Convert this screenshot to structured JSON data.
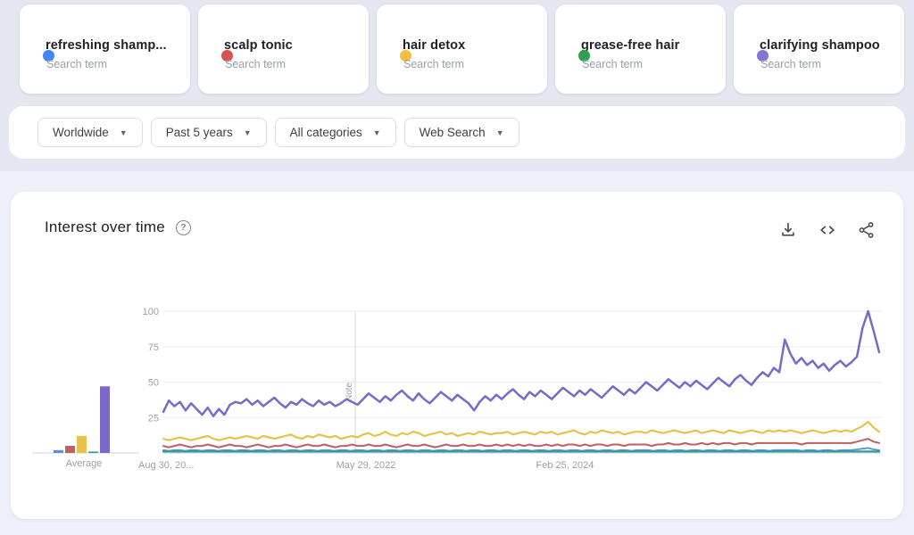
{
  "terms": [
    {
      "label": "refreshing shamp...",
      "sub": "Search term",
      "color": "#4285f4",
      "line": "#5b8fd4"
    },
    {
      "label": "scalp tonic",
      "sub": "Search term",
      "color": "#d9534e",
      "line": "#c0605c"
    },
    {
      "label": "hair detox",
      "sub": "Search term",
      "color": "#f2bf42",
      "line": "#e7c14c"
    },
    {
      "label": "grease-free hair",
      "sub": "Search term",
      "color": "#2ea052",
      "line": "#2f9e96"
    },
    {
      "label": "clarifying shampoo",
      "sub": "Search term",
      "color": "#8673d2",
      "line": "#7b68c9"
    }
  ],
  "filters": [
    {
      "label": "Worldwide"
    },
    {
      "label": "Past 5 years"
    },
    {
      "label": "All categories"
    },
    {
      "label": "Web Search"
    }
  ],
  "chart_header": {
    "title": "Interest over time",
    "help": "?"
  },
  "chart_data": {
    "type": "line",
    "title": "Interest over time",
    "ylim": [
      0,
      100
    ],
    "yticks": [
      25,
      50,
      75,
      100
    ],
    "xticks": [
      {
        "label": "Aug 30, 20...",
        "pos": 0,
        "anchor": "start"
      },
      {
        "label": "May 29, 2022",
        "pos": 0.283,
        "anchor": "middle"
      },
      {
        "label": "Feb 25, 2024",
        "pos": 0.561,
        "anchor": "middle"
      }
    ],
    "note_label": "Note",
    "note_marker_pos": 0.268,
    "average_label": "Average",
    "averages": [
      2,
      5,
      12,
      1,
      47
    ],
    "legend_position": "top-cards",
    "grid": true,
    "series": [
      {
        "name": "refreshing shampoo",
        "line": "#5b8fd4",
        "width": 1.8,
        "values": [
          2,
          1.5,
          2,
          2,
          1.5,
          2,
          2,
          1.5,
          2,
          2,
          1.5,
          2,
          2,
          1.5,
          2,
          2,
          1.5,
          2,
          2,
          1.5,
          2,
          2,
          1.5,
          2,
          2,
          1.5,
          2,
          2,
          1.5,
          2,
          2,
          1.5,
          2,
          2,
          1.5,
          2,
          2,
          1.5,
          2,
          2,
          1.5,
          2,
          2,
          1.5,
          2,
          2,
          1.5,
          2,
          2,
          1.5,
          2,
          2,
          1.5,
          2,
          2,
          1.5,
          2,
          2,
          1.5,
          2,
          2,
          1.5,
          2,
          2,
          1.5,
          2,
          2,
          1.5,
          2,
          2,
          1.5,
          2,
          2,
          1.5,
          2,
          2,
          1.5,
          2,
          2,
          1.5,
          2,
          2,
          1.5,
          2,
          2,
          1.5,
          2,
          2,
          2,
          1.5,
          2,
          2,
          1.5,
          2,
          2,
          1.5,
          2,
          2,
          1.5,
          2,
          2,
          1.5,
          2,
          2,
          1.5,
          2,
          2,
          1.5,
          2,
          2,
          1.5,
          2,
          2,
          2,
          2,
          2,
          1.5,
          2,
          2,
          1.5,
          2,
          2,
          1.5,
          2,
          2,
          2,
          2.5,
          3,
          3.5,
          2.5,
          2
        ]
      },
      {
        "name": "scalp tonic",
        "line": "#c0605c",
        "width": 2,
        "values": [
          5,
          4,
          5,
          6,
          5,
          4,
          5,
          5,
          6,
          5,
          4,
          5,
          6,
          5,
          5,
          4,
          5,
          6,
          5,
          4,
          5,
          5,
          6,
          5,
          4,
          5,
          6,
          5,
          5,
          6,
          5,
          4,
          5,
          5,
          6,
          5,
          5,
          6,
          5,
          5,
          6,
          5,
          4,
          5,
          6,
          5,
          5,
          6,
          5,
          4,
          5,
          6,
          5,
          5,
          6,
          5,
          5,
          6,
          5,
          5,
          6,
          5,
          6,
          5,
          6,
          5,
          6,
          5,
          5,
          6,
          5,
          6,
          5,
          6,
          6,
          5,
          6,
          5,
          6,
          6,
          5,
          6,
          6,
          5,
          6,
          6,
          6,
          6,
          5,
          6,
          6,
          7,
          6,
          6,
          7,
          6,
          6,
          7,
          6,
          7,
          6,
          7,
          7,
          6,
          7,
          7,
          6,
          7,
          7,
          7,
          7,
          7,
          7,
          7,
          7,
          6,
          7,
          7,
          7,
          7,
          7,
          7,
          7,
          7,
          7,
          8,
          9,
          10,
          8,
          7
        ]
      },
      {
        "name": "hair detox",
        "line": "#e7c14c",
        "width": 2.2,
        "values": [
          10,
          9,
          10,
          11,
          10,
          9,
          10,
          11,
          12,
          10,
          9,
          10,
          11,
          10,
          11,
          12,
          11,
          10,
          12,
          11,
          10,
          11,
          12,
          13,
          11,
          10,
          12,
          11,
          13,
          12,
          11,
          12,
          10,
          11,
          12,
          11,
          13,
          14,
          12,
          13,
          15,
          13,
          12,
          14,
          13,
          15,
          14,
          12,
          13,
          14,
          15,
          13,
          14,
          12,
          13,
          14,
          13,
          15,
          14,
          13,
          14,
          14,
          15,
          13,
          14,
          15,
          14,
          13,
          15,
          14,
          15,
          13,
          14,
          15,
          16,
          14,
          13,
          15,
          14,
          16,
          15,
          14,
          15,
          13,
          14,
          15,
          15,
          14,
          16,
          15,
          14,
          15,
          16,
          15,
          14,
          15,
          16,
          14,
          15,
          16,
          15,
          14,
          16,
          15,
          14,
          15,
          16,
          15,
          14,
          16,
          15,
          16,
          15,
          16,
          15,
          14,
          15,
          16,
          15,
          14,
          15,
          16,
          15,
          16,
          15,
          17,
          19,
          22,
          18,
          15
        ]
      },
      {
        "name": "grease-free hair",
        "line": "#2f9e96",
        "width": 2.2,
        "values": [
          1,
          1,
          1,
          1,
          1,
          1,
          1,
          1,
          1,
          1,
          1,
          1,
          1,
          1,
          1,
          1,
          1,
          1,
          1,
          1,
          1,
          1,
          1,
          1,
          1,
          1,
          1,
          1,
          1,
          1,
          1,
          1,
          1,
          1,
          1,
          1,
          1,
          1,
          1,
          1,
          1,
          1,
          1,
          1,
          1,
          1,
          1,
          1,
          1,
          1,
          1,
          1,
          1,
          1,
          1,
          1,
          1,
          1,
          1,
          1,
          1,
          1,
          1,
          1,
          1,
          1,
          1,
          1,
          1,
          1,
          1,
          1,
          1,
          1,
          1,
          1,
          1,
          1,
          1,
          1,
          1,
          1,
          1,
          1,
          1,
          1,
          1,
          1,
          1,
          1,
          1,
          1,
          1,
          1,
          1,
          1,
          1,
          1,
          1,
          1,
          1,
          1,
          1,
          1,
          1,
          1,
          1,
          1,
          1,
          1,
          1,
          1,
          1,
          1,
          1,
          1,
          1,
          1,
          1,
          1,
          1,
          1,
          1,
          1,
          1,
          1,
          1,
          1,
          1,
          1
        ]
      },
      {
        "name": "clarifying shampoo",
        "line": "#7b68c9",
        "width": 2.5,
        "values": [
          29,
          37,
          33,
          36,
          30,
          35,
          31,
          27,
          32,
          26,
          31,
          27,
          34,
          36,
          35,
          38,
          34,
          37,
          33,
          36,
          39,
          35,
          32,
          36,
          34,
          38,
          35,
          33,
          37,
          34,
          36,
          33,
          35,
          38,
          36,
          34,
          38,
          42,
          39,
          36,
          40,
          37,
          41,
          44,
          40,
          37,
          42,
          38,
          35,
          39,
          43,
          40,
          37,
          41,
          38,
          35,
          30,
          36,
          40,
          37,
          41,
          38,
          42,
          45,
          41,
          38,
          43,
          40,
          44,
          41,
          38,
          42,
          46,
          43,
          40,
          44,
          41,
          45,
          42,
          39,
          43,
          47,
          44,
          41,
          45,
          42,
          46,
          50,
          47,
          44,
          48,
          52,
          49,
          46,
          50,
          47,
          51,
          48,
          45,
          49,
          53,
          50,
          47,
          52,
          55,
          51,
          48,
          53,
          57,
          54,
          60,
          57,
          80,
          70,
          63,
          67,
          62,
          65,
          60,
          63,
          58,
          62,
          65,
          61,
          64,
          68,
          88,
          100,
          86,
          71
        ]
      }
    ]
  }
}
